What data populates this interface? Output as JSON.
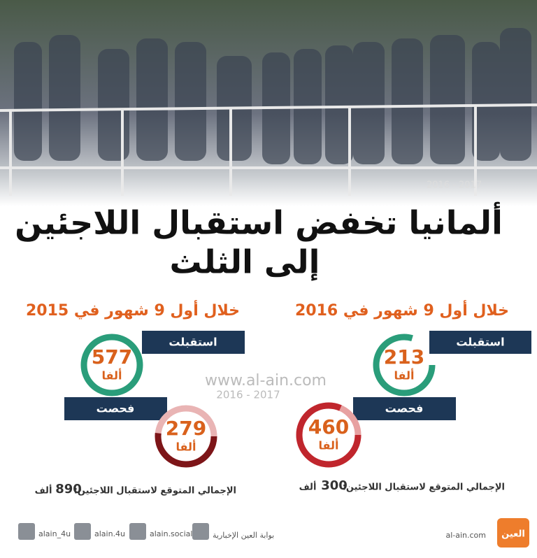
{
  "header": {
    "title_line1": "ألمانيا تخفض استقبال اللاجئين",
    "title_line2": "إلى الثلث",
    "photo_watermark": "2016 - 2017"
  },
  "watermark": {
    "site": "www.al-ain.com",
    "years": "2016 - 2017"
  },
  "panels": [
    {
      "heading": "خلال أول 9 شهور في 2016",
      "received_label": "استقبلت",
      "received": 213,
      "received_unit": "ألفا",
      "examined_label": "فحصت",
      "examined": 460,
      "examined_unit": "ألفا",
      "total_label": "الإجمالي المتوقع لاستقبال اللاجئين:",
      "total": 300,
      "total_unit": "ألف"
    },
    {
      "heading": "خلال أول 9 شهور في 2015",
      "received_label": "استقبلت",
      "received": 577,
      "received_unit": "ألفا",
      "examined_label": "فحصت",
      "examined": 279,
      "examined_unit": "ألفا",
      "total_label": "الإجمالي المتوقع لاستقبال اللاجئين:",
      "total": 890,
      "total_unit": "ألف"
    }
  ],
  "footer": {
    "twitter": "alain_4u",
    "instagram": "alain.4u",
    "facebook": "alain.social",
    "youtube": "بوابة العين الإخبارية",
    "site": "al-ain.com",
    "logo": "العين"
  }
}
